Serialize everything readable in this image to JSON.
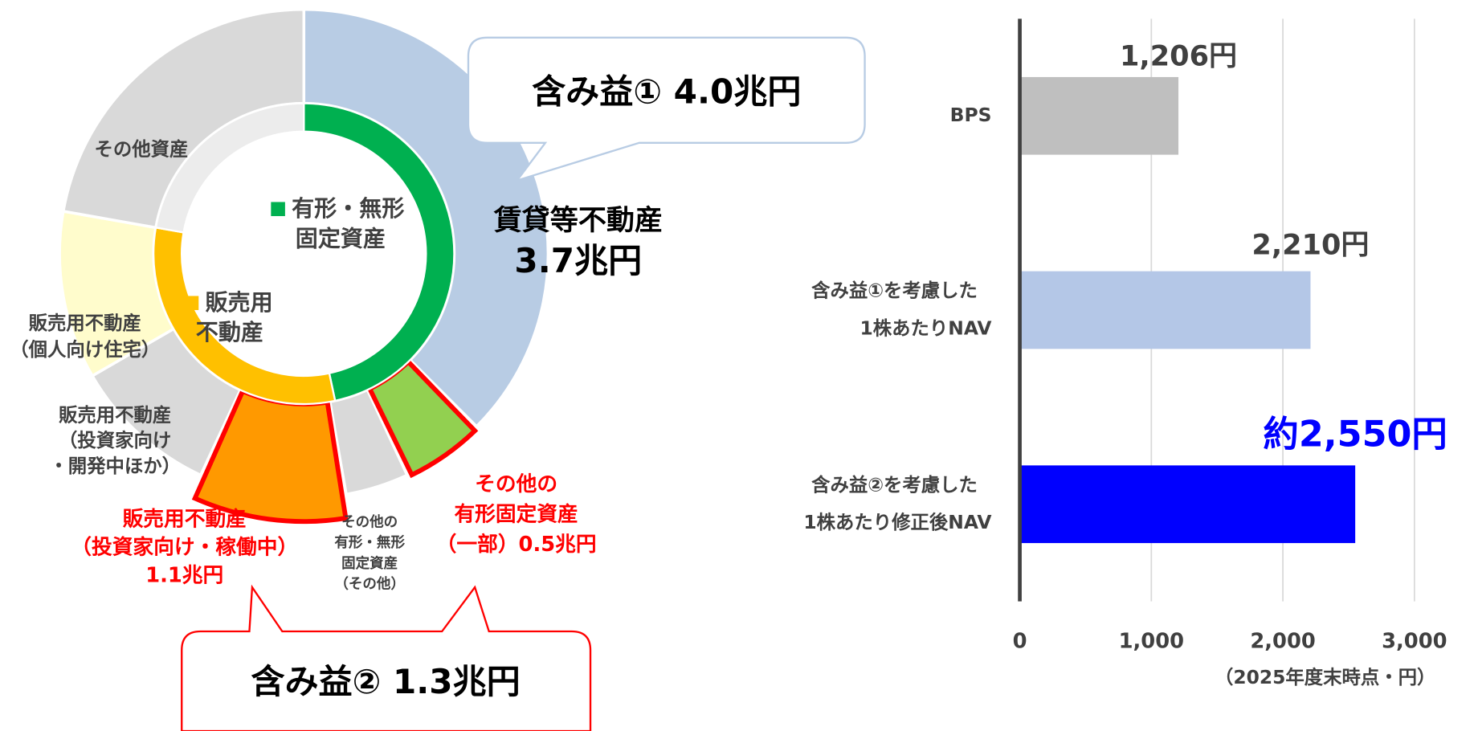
{
  "diagram": {
    "callouts": [
      {
        "text": "含み益① 4.0兆円"
      },
      {
        "text": "含み益② 1.3兆円"
      }
    ],
    "inner_labels": [
      {
        "lines": [
          "有形・無形",
          "固定資産"
        ]
      },
      {
        "lines": [
          "販売用",
          "不動産"
        ]
      }
    ],
    "outer_labels": [
      {
        "lines": [
          "賃貸等不動産",
          "3.7兆円"
        ]
      },
      {
        "lines": [
          "その他資産"
        ]
      },
      {
        "lines": [
          "販売用不動産",
          "（個人向け住宅）"
        ]
      },
      {
        "lines": [
          "販売用不動産",
          "（投資家向け",
          "・開発中ほか）"
        ]
      },
      {
        "lines": [
          "販売用不動産",
          "（投資家向け・稼働中）",
          "1.1兆円"
        ]
      },
      {
        "lines": [
          "その他の",
          "有形・無形",
          "固定資産",
          "（その他）"
        ]
      },
      {
        "lines": [
          "その他の",
          "有形固定資産",
          "（一部）0.5兆円"
        ]
      }
    ]
  },
  "chart_data": {
    "type": "bar",
    "orientation": "horizontal",
    "categories": [
      "BPS",
      "含み益①を考慮した\n1株あたりNAV",
      "含み益②を考慮した\n1株あたり修正後NAV"
    ],
    "values": [
      1206,
      2210,
      2550
    ],
    "value_labels": [
      "1,206円",
      "2,210円",
      "約2,550円"
    ],
    "colors": [
      "#bfbfbf",
      "#b4c7e7",
      "#0000ff"
    ],
    "xlim": [
      0,
      3000
    ],
    "xticks": [
      0,
      {
        "value": 1000,
        "label": "1,000"
      },
      {
        "value": 2000,
        "label": "2,000"
      },
      {
        "value": 3000,
        "label": "3,000"
      }
    ],
    "xlabel": "（2025年度末時点・円）",
    "grid": true
  }
}
